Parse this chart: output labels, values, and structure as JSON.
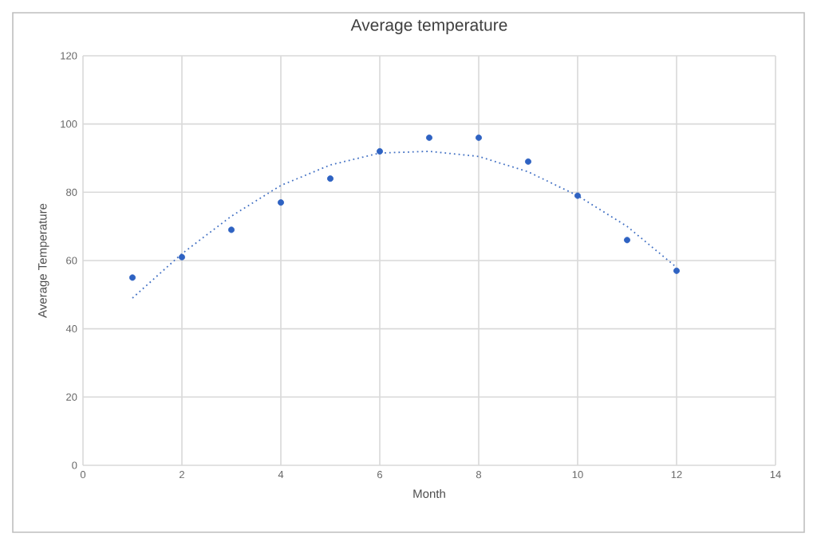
{
  "chart_data": {
    "type": "scatter",
    "title": "Average temperature",
    "xlabel": "Month",
    "ylabel": "Average Temperature",
    "xlim": [
      0,
      14
    ],
    "xticks": [
      0,
      2,
      4,
      6,
      8,
      10,
      12,
      14
    ],
    "ylim": [
      0,
      120
    ],
    "yticks": [
      0,
      20,
      40,
      60,
      80,
      100,
      120
    ],
    "grid": true,
    "series": [
      {
        "marker": "circle",
        "color": "#2e62c2",
        "x": [
          1,
          2,
          3,
          4,
          5,
          6,
          7,
          8,
          9,
          10,
          11,
          12
        ],
        "values": [
          55,
          61,
          69,
          77,
          84,
          92,
          96,
          96,
          89,
          79,
          66,
          57
        ]
      },
      {
        "type": "line",
        "line_style": "dotted",
        "marker": "none",
        "color": "#4472c4",
        "x": [
          1,
          2,
          3,
          4,
          5,
          6,
          7,
          8,
          9,
          10,
          11,
          12
        ],
        "values": [
          49,
          62,
          73,
          82,
          88,
          91.5,
          92,
          90.5,
          86,
          79,
          70,
          58
        ]
      }
    ]
  }
}
